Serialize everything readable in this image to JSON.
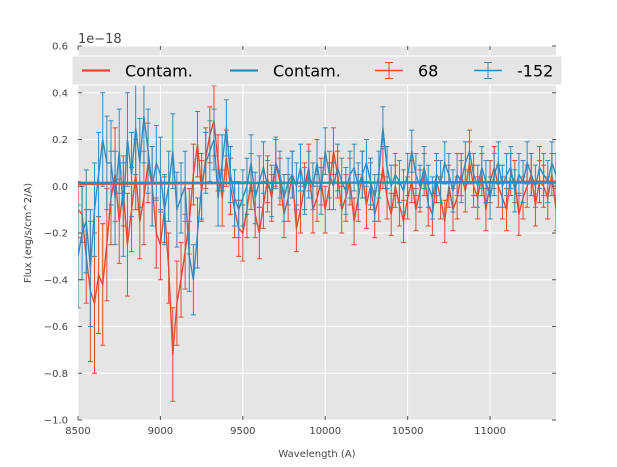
{
  "chart_data": {
    "type": "line",
    "offset_label": "1e−18",
    "xlabel": "Wavelength (A)",
    "ylabel": "Flux (erg/s/cm^2/A)",
    "xlim": [
      8500,
      11400
    ],
    "ylim": [
      -1.0,
      0.6
    ],
    "x_ticks": [
      8500,
      9000,
      9500,
      10000,
      10500,
      11000
    ],
    "x_tick_labels": [
      "8500",
      "9000",
      "9500",
      "10000",
      "10500",
      "11000"
    ],
    "y_ticks": [
      -1.0,
      -0.8,
      -0.6,
      -0.4,
      -0.2,
      0.0,
      0.2,
      0.4,
      0.6
    ],
    "y_tick_labels": [
      "−1.0",
      "−0.8",
      "−0.6",
      "−0.4",
      "−0.2",
      "0.0",
      "0.2",
      "0.4",
      "0.6"
    ],
    "grid": true,
    "legend_position": "top",
    "legend": [
      {
        "label": "Contam.",
        "kind": "line",
        "color": "#E24A33"
      },
      {
        "label": "Contam.",
        "kind": "line",
        "color": "#348ABD"
      },
      {
        "label": "68",
        "kind": "errorbar",
        "color": "#E24A33"
      },
      {
        "label": "-152",
        "kind": "errorbar",
        "color": "#348ABD"
      }
    ],
    "series": [
      {
        "name": "Contam.",
        "kind": "line",
        "color": "#E24A33",
        "x": [
          8500,
          11400
        ],
        "y": [
          0.01,
          0.02
        ]
      },
      {
        "name": "Contam.",
        "kind": "line",
        "color": "#348ABD",
        "x": [
          8500,
          11400
        ],
        "y": [
          0.015,
          0.015
        ]
      },
      {
        "name": "68",
        "kind": "errorbar",
        "color": "#E24A33",
        "x": [
          8500,
          8525,
          8550,
          8575,
          8600,
          8625,
          8650,
          8675,
          8700,
          8725,
          8750,
          8775,
          8800,
          8825,
          8850,
          8875,
          8900,
          8925,
          8950,
          8975,
          9000,
          9025,
          9050,
          9075,
          9100,
          9125,
          9150,
          9175,
          9200,
          9225,
          9250,
          9275,
          9300,
          9325,
          9350,
          9375,
          9400,
          9425,
          9450,
          9475,
          9500,
          9525,
          9550,
          9575,
          9600,
          9625,
          9650,
          9675,
          9700,
          9725,
          9750,
          9775,
          9800,
          9825,
          9850,
          9875,
          9900,
          9925,
          9950,
          9975,
          10000,
          10025,
          10050,
          10075,
          10100,
          10125,
          10150,
          10175,
          10200,
          10225,
          10250,
          10275,
          10300,
          10325,
          10350,
          10375,
          10400,
          10425,
          10450,
          10475,
          10500,
          10525,
          10550,
          10575,
          10600,
          10625,
          10650,
          10675,
          10700,
          10725,
          10750,
          10775,
          10800,
          10825,
          10850,
          10875,
          10900,
          10925,
          10950,
          10975,
          11000,
          11025,
          11050,
          11075,
          11100,
          11125,
          11150,
          11175,
          11200,
          11225,
          11250,
          11275,
          11300,
          11325,
          11350,
          11375,
          11400
        ],
        "y": [
          -0.1,
          -0.12,
          -0.3,
          -0.45,
          -0.5,
          -0.38,
          -0.42,
          -0.25,
          -0.05,
          0.05,
          -0.15,
          -0.02,
          -0.25,
          -0.1,
          0.05,
          -0.15,
          -0.05,
          0.1,
          0.0,
          -0.2,
          -0.25,
          -0.1,
          -0.35,
          -0.72,
          -0.5,
          -0.4,
          -0.28,
          -0.15,
          0.05,
          0.18,
          -0.02,
          0.12,
          0.22,
          0.28,
          0.1,
          -0.05,
          0.12,
          0.0,
          -0.1,
          -0.18,
          -0.2,
          -0.1,
          0.02,
          -0.12,
          -0.2,
          -0.08,
          0.03,
          -0.05,
          0.1,
          0.02,
          -0.12,
          -0.05,
          0.05,
          -0.18,
          -0.1,
          0.0,
          0.08,
          -0.1,
          -0.05,
          0.02,
          -0.1,
          0.0,
          0.15,
          0.05,
          -0.1,
          -0.05,
          0.02,
          -0.15,
          -0.05,
          0.05,
          -0.08,
          0.0,
          -0.12,
          -0.05,
          0.08,
          -0.05,
          -0.12,
          0.0,
          -0.08,
          -0.15,
          -0.05,
          0.02,
          -0.1,
          -0.02,
          0.05,
          -0.08,
          -0.12,
          0.02,
          -0.05,
          -0.15,
          0.0,
          -0.1,
          -0.05,
          0.05,
          -0.02,
          0.1,
          0.0,
          -0.05,
          0.05,
          -0.1,
          0.02,
          0.08,
          0.0,
          -0.05,
          -0.1,
          0.05,
          0.02,
          -0.12,
          -0.05,
          0.0,
          0.05,
          -0.08,
          0.02,
          0.0,
          -0.05,
          0.05,
          -0.1
        ],
        "yerr": [
          0.12,
          0.12,
          0.2,
          0.3,
          0.3,
          0.25,
          0.26,
          0.24,
          0.2,
          0.2,
          0.18,
          0.15,
          0.22,
          0.18,
          0.15,
          0.16,
          0.2,
          0.17,
          0.17,
          0.15,
          0.15,
          0.14,
          0.15,
          0.2,
          0.18,
          0.16,
          0.16,
          0.14,
          0.13,
          0.14,
          0.13,
          0.13,
          0.12,
          0.15,
          0.12,
          0.12,
          0.12,
          0.12,
          0.12,
          0.12,
          0.12,
          0.12,
          0.12,
          0.1,
          0.11,
          0.1,
          0.1,
          0.1,
          0.1,
          0.1,
          0.1,
          0.1,
          0.1,
          0.1,
          0.1,
          0.1,
          0.1,
          0.1,
          0.1,
          0.1,
          0.1,
          0.1,
          0.1,
          0.1,
          0.1,
          0.1,
          0.1,
          0.1,
          0.1,
          0.1,
          0.1,
          0.1,
          0.1,
          0.1,
          0.09,
          0.09,
          0.09,
          0.09,
          0.09,
          0.09,
          0.09,
          0.09,
          0.09,
          0.09,
          0.09,
          0.09,
          0.09,
          0.09,
          0.09,
          0.09,
          0.09,
          0.09,
          0.09,
          0.09,
          0.09,
          0.09,
          0.09,
          0.09,
          0.09,
          0.09,
          0.09,
          0.09,
          0.09,
          0.09,
          0.09,
          0.09,
          0.09,
          0.09,
          0.09,
          0.09,
          0.09,
          0.09,
          0.09,
          0.09,
          0.09,
          0.09,
          0.09
        ]
      },
      {
        "name": "-152",
        "kind": "errorbar",
        "color": "#348ABD",
        "x": [
          8500,
          8525,
          8550,
          8575,
          8600,
          8625,
          8650,
          8675,
          8700,
          8725,
          8750,
          8775,
          8800,
          8825,
          8850,
          8875,
          8900,
          8925,
          8950,
          8975,
          9000,
          9025,
          9050,
          9075,
          9100,
          9125,
          9150,
          9175,
          9200,
          9225,
          9250,
          9275,
          9300,
          9325,
          9350,
          9375,
          9400,
          9425,
          9450,
          9475,
          9500,
          9525,
          9550,
          9575,
          9600,
          9625,
          9650,
          9675,
          9700,
          9725,
          9750,
          9775,
          9800,
          9825,
          9850,
          9875,
          9900,
          9925,
          9950,
          9975,
          10000,
          10025,
          10050,
          10075,
          10100,
          10125,
          10150,
          10175,
          10200,
          10225,
          10250,
          10275,
          10300,
          10325,
          10350,
          10375,
          10400,
          10425,
          10450,
          10475,
          10500,
          10525,
          10550,
          10575,
          10600,
          10625,
          10650,
          10675,
          10700,
          10725,
          10750,
          10775,
          10800,
          10825,
          10850,
          10875,
          10900,
          10925,
          10950,
          10975,
          11000,
          11025,
          11050,
          11075,
          11100,
          11125,
          11150,
          11175,
          11200,
          11225,
          11250,
          11275,
          11300,
          11325,
          11350,
          11375,
          11400
        ],
        "y": [
          -0.3,
          -0.2,
          -0.15,
          -0.35,
          -0.1,
          0.05,
          0.2,
          0.1,
          0.1,
          -0.05,
          0.15,
          -0.1,
          0.2,
          0.05,
          0.25,
          0.1,
          0.3,
          0.15,
          0.0,
          0.1,
          0.05,
          -0.1,
          0.0,
          0.15,
          -0.1,
          -0.05,
          0.0,
          -0.3,
          -0.4,
          -0.2,
          0.0,
          0.1,
          0.15,
          0.2,
          -0.05,
          0.1,
          0.25,
          0.05,
          -0.05,
          -0.1,
          -0.05,
          0.0,
          0.1,
          -0.05,
          0.02,
          0.08,
          0.0,
          -0.02,
          0.1,
          0.05,
          -0.05,
          0.02,
          0.05,
          0.0,
          0.08,
          -0.02,
          0.05,
          0.0,
          0.1,
          -0.02,
          0.15,
          0.05,
          0.0,
          0.08,
          0.02,
          -0.02,
          0.05,
          0.08,
          0.0,
          0.05,
          0.1,
          0.02,
          -0.05,
          0.05,
          0.25,
          0.08,
          0.0,
          0.05,
          0.02,
          -0.02,
          0.05,
          0.15,
          0.05,
          0.0,
          0.08,
          0.0,
          -0.05,
          0.05,
          0.02,
          0.1,
          0.05,
          -0.02,
          0.05,
          0.02,
          0.1,
          0.15,
          0.05,
          0.0,
          0.08,
          0.02,
          -0.05,
          0.05,
          0.1,
          0.0,
          0.05,
          0.08,
          -0.02,
          0.05,
          0.02,
          0.1,
          0.05,
          0.0,
          0.08,
          0.05,
          0.02,
          0.1,
          0.05
        ],
        "yerr": [
          0.22,
          0.2,
          0.22,
          0.25,
          0.2,
          0.18,
          0.2,
          0.2,
          0.18,
          0.2,
          0.18,
          0.2,
          0.2,
          0.18,
          0.2,
          0.19,
          0.2,
          0.18,
          0.17,
          0.16,
          0.16,
          0.15,
          0.15,
          0.16,
          0.16,
          0.15,
          0.15,
          0.15,
          0.15,
          0.15,
          0.14,
          0.13,
          0.13,
          0.13,
          0.12,
          0.12,
          0.12,
          0.12,
          0.12,
          0.12,
          0.12,
          0.12,
          0.12,
          0.11,
          0.11,
          0.11,
          0.11,
          0.11,
          0.11,
          0.1,
          0.1,
          0.1,
          0.1,
          0.1,
          0.1,
          0.1,
          0.1,
          0.1,
          0.1,
          0.1,
          0.1,
          0.1,
          0.1,
          0.1,
          0.1,
          0.1,
          0.1,
          0.1,
          0.1,
          0.1,
          0.1,
          0.1,
          0.1,
          0.1,
          0.09,
          0.09,
          0.09,
          0.09,
          0.09,
          0.09,
          0.09,
          0.09,
          0.09,
          0.09,
          0.09,
          0.09,
          0.09,
          0.09,
          0.09,
          0.09,
          0.09,
          0.09,
          0.09,
          0.09,
          0.09,
          0.09,
          0.09,
          0.09,
          0.09,
          0.09,
          0.09,
          0.09,
          0.09,
          0.09,
          0.09,
          0.09,
          0.09,
          0.09,
          0.09,
          0.09,
          0.09,
          0.09,
          0.09,
          0.09,
          0.09,
          0.09,
          0.09
        ]
      }
    ]
  }
}
